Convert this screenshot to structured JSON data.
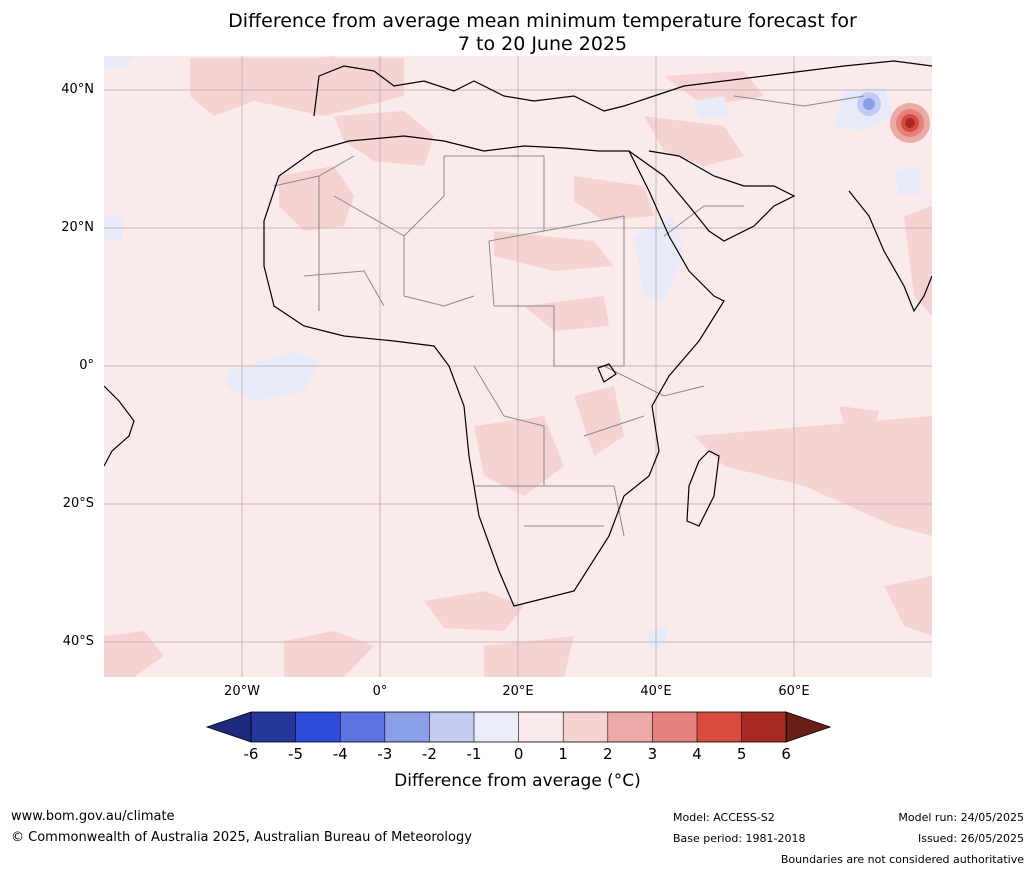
{
  "title": {
    "line1": "Difference from average mean minimum temperature forecast for",
    "line2": "7 to 20 June 2025"
  },
  "lat_labels": [
    "40°N",
    "20°N",
    "0°",
    "20°S",
    "40°S"
  ],
  "lon_labels": [
    "20°W",
    "0°",
    "20°E",
    "40°E",
    "60°E"
  ],
  "colorbar": {
    "ticks": [
      "-6",
      "-5",
      "-4",
      "-3",
      "-2",
      "-1",
      "0",
      "1",
      "2",
      "3",
      "4",
      "5",
      "6"
    ],
    "colors": [
      "#26379c",
      "#2e4cdc",
      "#5b74e2",
      "#8b9ee8",
      "#c3cbf2",
      "#eaedf9",
      "#fbeaea",
      "#f5d3d3",
      "#ecaaa6",
      "#e4817a",
      "#d94a3f",
      "#a82a24"
    ],
    "under_color": "#1c2b80",
    "over_color": "#6b1d18",
    "label": "Difference from average (°C)"
  },
  "footer": {
    "website": "www.bom.gov.au/climate",
    "copyright": "© Commonwealth of Australia 2025, Australian Bureau of Meteorology",
    "model": "Model: ACCESS-S2",
    "base_period": "Base period: 1981-2018",
    "model_run": "Model run: 24/05/2025",
    "issued": "Issued: 26/05/2025",
    "disclaimer": "Boundaries are not considered authoritative"
  }
}
